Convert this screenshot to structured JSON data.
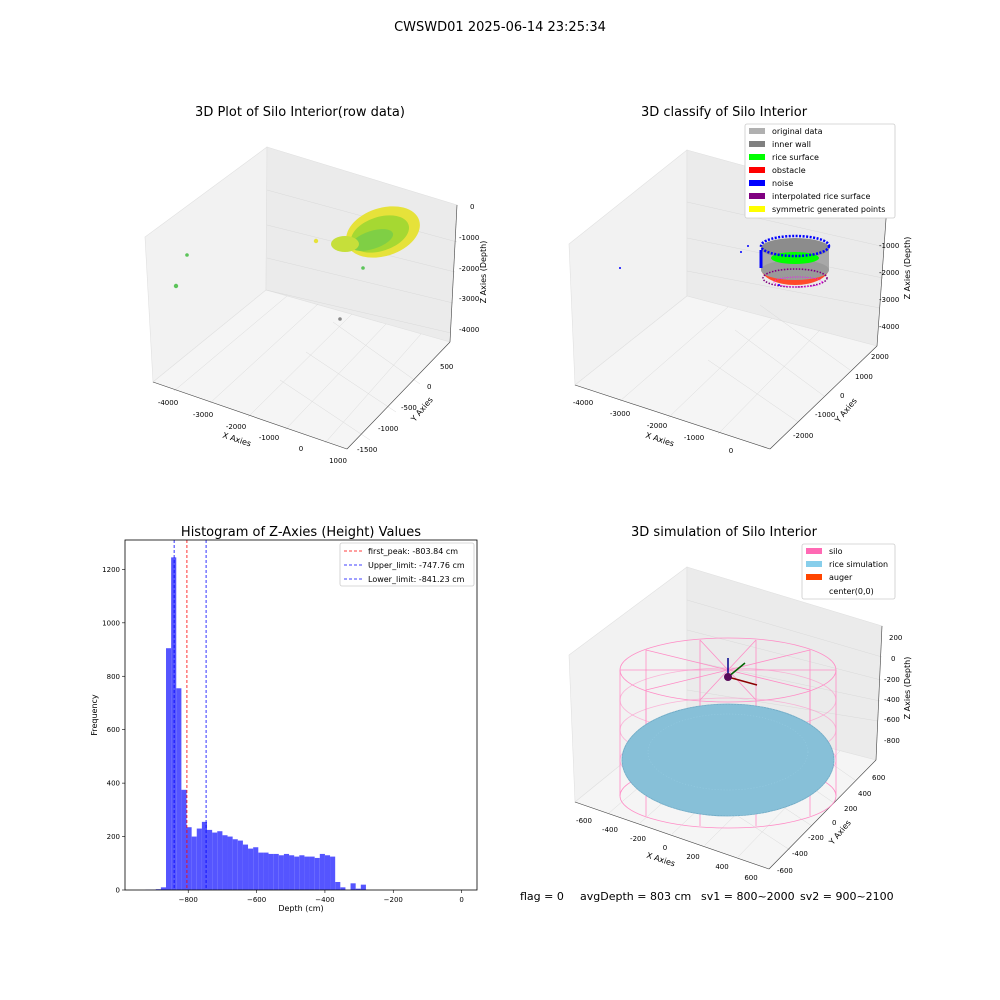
{
  "figure": {
    "title": "CWSWD01 2025-06-14 23:25:34",
    "footer": {
      "flag": "flag = 0",
      "avg_depth": "avgDepth = 803 cm",
      "sv1": "sv1 = 800~2000",
      "sv2": "sv2 = 900~2100"
    }
  },
  "chart_data": [
    {
      "type": "scatter3d",
      "title": "3D Plot of Silo Interior(row data)",
      "xlabel": "X Axies",
      "ylabel": "Y Axies",
      "zlabel": "Z Axies (Depth)",
      "x_ticks": [
        "-4000",
        "-3000",
        "-2000",
        "-1000",
        "0",
        "1000"
      ],
      "y_ticks": [
        "500",
        "0",
        "-500",
        "-1000",
        "-1500"
      ],
      "z_ticks": [
        "0",
        "-1000",
        "-2000",
        "-3000",
        "-4000"
      ],
      "colors": {
        "main": "#a6d832",
        "scatter": "#5cc45a"
      }
    },
    {
      "type": "scatter3d",
      "title": "3D classify of Silo Interior",
      "xlabel": "X Axies",
      "ylabel": "Y Axies",
      "zlabel": "Z Axies (Depth)",
      "x_ticks": [
        "-4000",
        "-3000",
        "-2000",
        "-1000",
        "0"
      ],
      "y_ticks": [
        "2000",
        "1000",
        "0",
        "-1000",
        "-2000"
      ],
      "z_ticks": [
        "-1000",
        "-2000",
        "-3000",
        "-4000"
      ],
      "legend": [
        {
          "label": "original data",
          "color": "#b0b0b0"
        },
        {
          "label": "inner wall",
          "color": "#808080"
        },
        {
          "label": "rice surface",
          "color": "#00ff00"
        },
        {
          "label": "obstacle",
          "color": "#ff0000"
        },
        {
          "label": "noise",
          "color": "#0000ff"
        },
        {
          "label": "interpolated rice surface",
          "color": "#800080"
        },
        {
          "label": "symmetric generated points",
          "color": "#ffff00"
        }
      ],
      "legend_position": "top-right"
    },
    {
      "type": "bar",
      "title": "Histogram of Z-Axies (Height) Values",
      "xlabel": "Depth (cm)",
      "ylabel": "Frequency",
      "xlim": [
        -985,
        45
      ],
      "ylim": [
        0,
        1310
      ],
      "x_ticks": [
        -800,
        -600,
        -400,
        -200,
        0
      ],
      "y_ticks": [
        0,
        200,
        400,
        600,
        800,
        1000,
        1200
      ],
      "bin_start": -925,
      "bin_width": 15,
      "values": [
        1,
        1,
        3,
        10,
        905,
        1245,
        755,
        375,
        235,
        200,
        230,
        255,
        225,
        215,
        220,
        205,
        200,
        190,
        185,
        170,
        155,
        160,
        140,
        140,
        135,
        135,
        130,
        135,
        130,
        125,
        130,
        125,
        125,
        120,
        135,
        130,
        125,
        30,
        10,
        0,
        25,
        5,
        20,
        0
      ],
      "bar_color": "#5555ff",
      "vlines": [
        {
          "label": "first_peak: -803.84 cm",
          "value": -803.84,
          "color": "#ff0000"
        },
        {
          "label": "Upper_limit: -747.76 cm",
          "value": -747.76,
          "color": "#0000ff"
        },
        {
          "label": "Lower_limit: -841.23 cm",
          "value": -841.23,
          "color": "#0000ff"
        }
      ],
      "legend_position": "top-right"
    },
    {
      "type": "surface3d",
      "title": "3D simulation of Silo Interior",
      "xlabel": "X Axies",
      "ylabel": "Y Axies",
      "zlabel": "Z Axies (Depth)",
      "x_ticks": [
        "-600",
        "-400",
        "-200",
        "0",
        "200",
        "400",
        "600"
      ],
      "y_ticks": [
        "600",
        "400",
        "200",
        "0",
        "-200",
        "-400",
        "-600"
      ],
      "z_ticks": [
        "200",
        "0",
        "-200",
        "-400",
        "-600",
        "-800"
      ],
      "legend": [
        {
          "label": "silo",
          "color": "#ff69b4"
        },
        {
          "label": "rice simulation",
          "color": "#87ceeb"
        },
        {
          "label": "auger",
          "color": "#ff4500"
        },
        {
          "label": "center(0,0)",
          "color": ""
        }
      ],
      "legend_position": "top-right"
    }
  ]
}
